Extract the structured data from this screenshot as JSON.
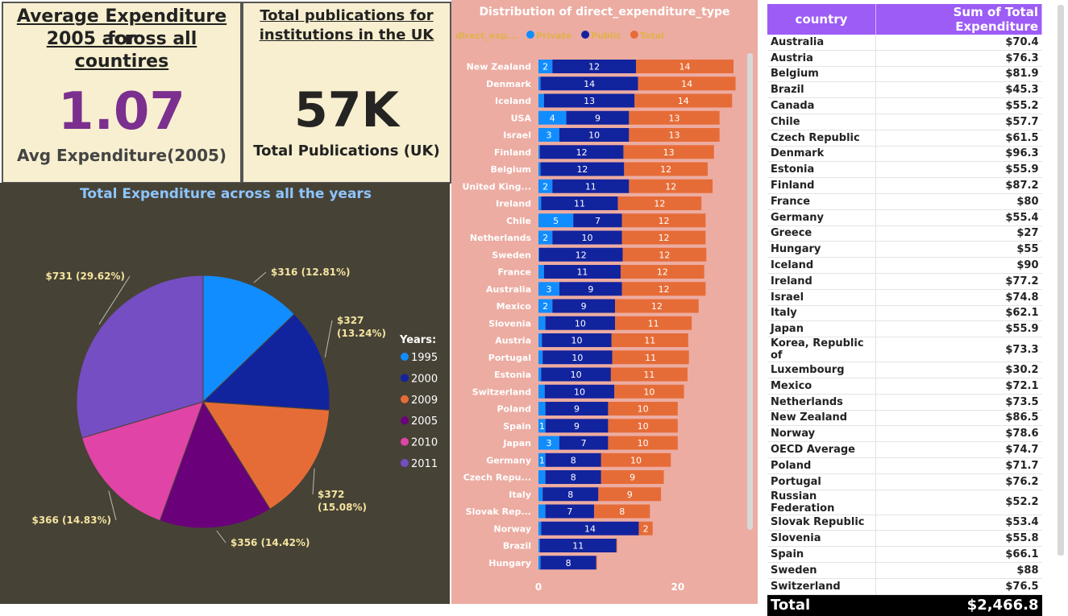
{
  "kpi1": {
    "title_line1": "Average Expenditure for",
    "title_line2": "2005 across all countires",
    "value": "1.07",
    "label": "Avg Expenditure(2005)"
  },
  "kpi2": {
    "title_line1": "Total publications for",
    "title_line2": "institutions in the UK",
    "value": "57K",
    "label": "Total Publications (UK)"
  },
  "pie": {
    "title": "Total Expenditure across all the years",
    "legend_title": "Years:",
    "colors": {
      "1995": "#118dff",
      "2000": "#12239e",
      "2009": "#e66c37",
      "2005": "#6b007b",
      "2010": "#e044a7",
      "2011": "#744ec2"
    }
  },
  "bar": {
    "title": "Distribution of direct_expenditure_type",
    "legend_title": "direct_exp...",
    "colors": {
      "Private": "#118dff",
      "Public": "#12239e",
      "Total": "#e66c37"
    }
  },
  "table": {
    "col1": "country",
    "col2": "Sum of Total Expenditure",
    "rows": [
      [
        "Australia",
        "$70.4"
      ],
      [
        "Austria",
        "$76.3"
      ],
      [
        "Belgium",
        "$81.9"
      ],
      [
        "Brazil",
        "$45.3"
      ],
      [
        "Canada",
        "$55.2"
      ],
      [
        "Chile",
        "$57.7"
      ],
      [
        "Czech Republic",
        "$61.5"
      ],
      [
        "Denmark",
        "$96.3"
      ],
      [
        "Estonia",
        "$55.9"
      ],
      [
        "Finland",
        "$87.2"
      ],
      [
        "France",
        "$80"
      ],
      [
        "Germany",
        "$55.4"
      ],
      [
        "Greece",
        "$27"
      ],
      [
        "Hungary",
        "$55"
      ],
      [
        "Iceland",
        "$90"
      ],
      [
        "Ireland",
        "$77.2"
      ],
      [
        "Israel",
        "$74.8"
      ],
      [
        "Italy",
        "$62.1"
      ],
      [
        "Japan",
        "$55.9"
      ],
      [
        "Korea, Republic of",
        "$73.3"
      ],
      [
        "Luxembourg",
        "$30.2"
      ],
      [
        "Mexico",
        "$72.1"
      ],
      [
        "Netherlands",
        "$73.5"
      ],
      [
        "New Zealand",
        "$86.5"
      ],
      [
        "Norway",
        "$78.6"
      ],
      [
        "OECD Average",
        "$74.7"
      ],
      [
        "Poland",
        "$71.7"
      ],
      [
        "Portugal",
        "$76.2"
      ],
      [
        "Russian Federation",
        "$52.2"
      ],
      [
        "Slovak Republic",
        "$53.4"
      ],
      [
        "Slovenia",
        "$55.8"
      ],
      [
        "Spain",
        "$66.1"
      ],
      [
        "Sweden",
        "$88"
      ],
      [
        "Switzerland",
        "$76.5"
      ]
    ],
    "total_label": "Total",
    "total_value": "$2,466.8"
  },
  "chart_data": [
    {
      "type": "pie",
      "title": "Total Expenditure across all the years",
      "legend_title": "Years:",
      "slices": [
        {
          "name": "1995",
          "value": 316,
          "label": "$316 (12.81%)"
        },
        {
          "name": "2000",
          "value": 327,
          "label": "$327 (13.24%)"
        },
        {
          "name": "2009",
          "value": 372,
          "label": "$372 (15.08%)"
        },
        {
          "name": "2005",
          "value": 356,
          "label": "$356 (14.42%)"
        },
        {
          "name": "2010",
          "value": 366,
          "label": "$366 (14.83%)"
        },
        {
          "name": "2011",
          "value": 731,
          "label": "$731 (29.62%)"
        }
      ],
      "legend_placement": "right"
    },
    {
      "type": "bar",
      "orientation": "horizontal",
      "stacked": true,
      "title": "Distribution of direct_expenditure_type",
      "legend_title": "direct_exp...",
      "categories": [
        "New Zealand",
        "Denmark",
        "Iceland",
        "USA",
        "Israel",
        "Finland",
        "Belgium",
        "United King...",
        "Ireland",
        "Chile",
        "Netherlands",
        "Sweden",
        "France",
        "Australia",
        "Mexico",
        "Slovenia",
        "Austria",
        "Portugal",
        "Estonia",
        "Switzerland",
        "Poland",
        "Spain",
        "Japan",
        "Germany",
        "Czech Repu...",
        "Italy",
        "Slovak Rep...",
        "Norway",
        "Brazil",
        "Hungary"
      ],
      "series": [
        {
          "name": "Private",
          "values": [
            2,
            0.3,
            0.8,
            4,
            3,
            0.2,
            0.3,
            2,
            0.4,
            5,
            2,
            0.1,
            0.8,
            3,
            2,
            1,
            0.5,
            0.6,
            0.4,
            0.9,
            1,
            1,
            3,
            1,
            1,
            0.6,
            1,
            0.4,
            0.2,
            0.3
          ],
          "labels": [
            "2",
            "",
            "",
            "4",
            "3",
            "",
            "",
            "2",
            "",
            "5",
            "2",
            "",
            "",
            "3",
            "2",
            "",
            "",
            "",
            "",
            "",
            "",
            "1",
            "3",
            "1",
            "",
            "",
            "",
            "",
            "",
            ""
          ]
        },
        {
          "name": "Public",
          "values": [
            12,
            14,
            13,
            9,
            10,
            12,
            12,
            11,
            11,
            7,
            10,
            12,
            11,
            9,
            9,
            10,
            10,
            10,
            10,
            10,
            9,
            9,
            7,
            8,
            8,
            8,
            7,
            14,
            11,
            8
          ],
          "labels": [
            "12",
            "14",
            "13",
            "9",
            "10",
            "12",
            "12",
            "11",
            "11",
            "7",
            "10",
            "12",
            "11",
            "9",
            "9",
            "10",
            "10",
            "10",
            "10",
            "10",
            "9",
            "9",
            "7",
            "8",
            "8",
            "8",
            "7",
            "14",
            "11",
            "8"
          ]
        },
        {
          "name": "Total",
          "values": [
            14,
            14,
            14,
            13,
            13,
            13,
            12,
            12,
            12,
            12,
            12,
            12,
            12,
            12,
            12,
            11,
            11,
            11,
            11,
            10,
            10,
            10,
            10,
            10,
            9,
            9,
            8,
            2,
            0.1,
            0.1
          ],
          "labels": [
            "14",
            "14",
            "14",
            "13",
            "13",
            "13",
            "12",
            "12",
            "12",
            "12",
            "12",
            "12",
            "12",
            "12",
            "12",
            "11",
            "11",
            "11",
            "11",
            "10",
            "10",
            "10",
            "10",
            "10",
            "9",
            "9",
            "8",
            "2",
            "",
            ""
          ]
        }
      ],
      "xticks": [
        "0",
        "20"
      ],
      "xlim": [
        0,
        28
      ],
      "legend_placement": "top-left"
    }
  ]
}
